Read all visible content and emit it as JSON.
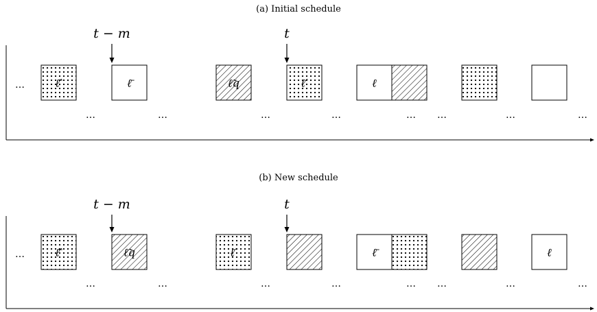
{
  "colors": {
    "stroke": "#000000",
    "background": "#ffffff"
  },
  "ellipsis": "…",
  "panels": [
    {
      "id": "initial",
      "caption": "(a) Initial schedule",
      "markers": [
        {
          "label": "t − m",
          "slot": 1
        },
        {
          "label": "t",
          "slot": 4
        }
      ],
      "slots": [
        {
          "pattern": "dots",
          "label": "ℓ̄′"
        },
        {
          "pattern": "none",
          "label": "ℓ̄"
        },
        {
          "pattern": "none",
          "label": ""
        },
        {
          "pattern": "hatch",
          "label": "ℓ̃q"
        },
        {
          "pattern": "dots",
          "label": "ℓ′"
        },
        {
          "pattern": "none",
          "label": "ℓ"
        },
        {
          "pattern": "hatch",
          "label": ""
        },
        {
          "pattern": "dots",
          "label": ""
        },
        {
          "pattern": "none",
          "label": ""
        }
      ]
    },
    {
      "id": "new",
      "caption": "(b) New schedule",
      "markers": [
        {
          "label": "t − m",
          "slot": 1
        },
        {
          "label": "t",
          "slot": 4
        }
      ],
      "slots": [
        {
          "pattern": "dots",
          "label": "ℓ̄′"
        },
        {
          "pattern": "hatch",
          "label": "ℓ̃q"
        },
        {
          "pattern": "none",
          "label": ""
        },
        {
          "pattern": "dots",
          "label": "ℓ′"
        },
        {
          "pattern": "hatch",
          "label": ""
        },
        {
          "pattern": "none",
          "label": "ℓ̄"
        },
        {
          "pattern": "dots",
          "label": ""
        },
        {
          "pattern": "hatch",
          "label": ""
        },
        {
          "pattern": "none",
          "label": "ℓ"
        }
      ]
    }
  ]
}
